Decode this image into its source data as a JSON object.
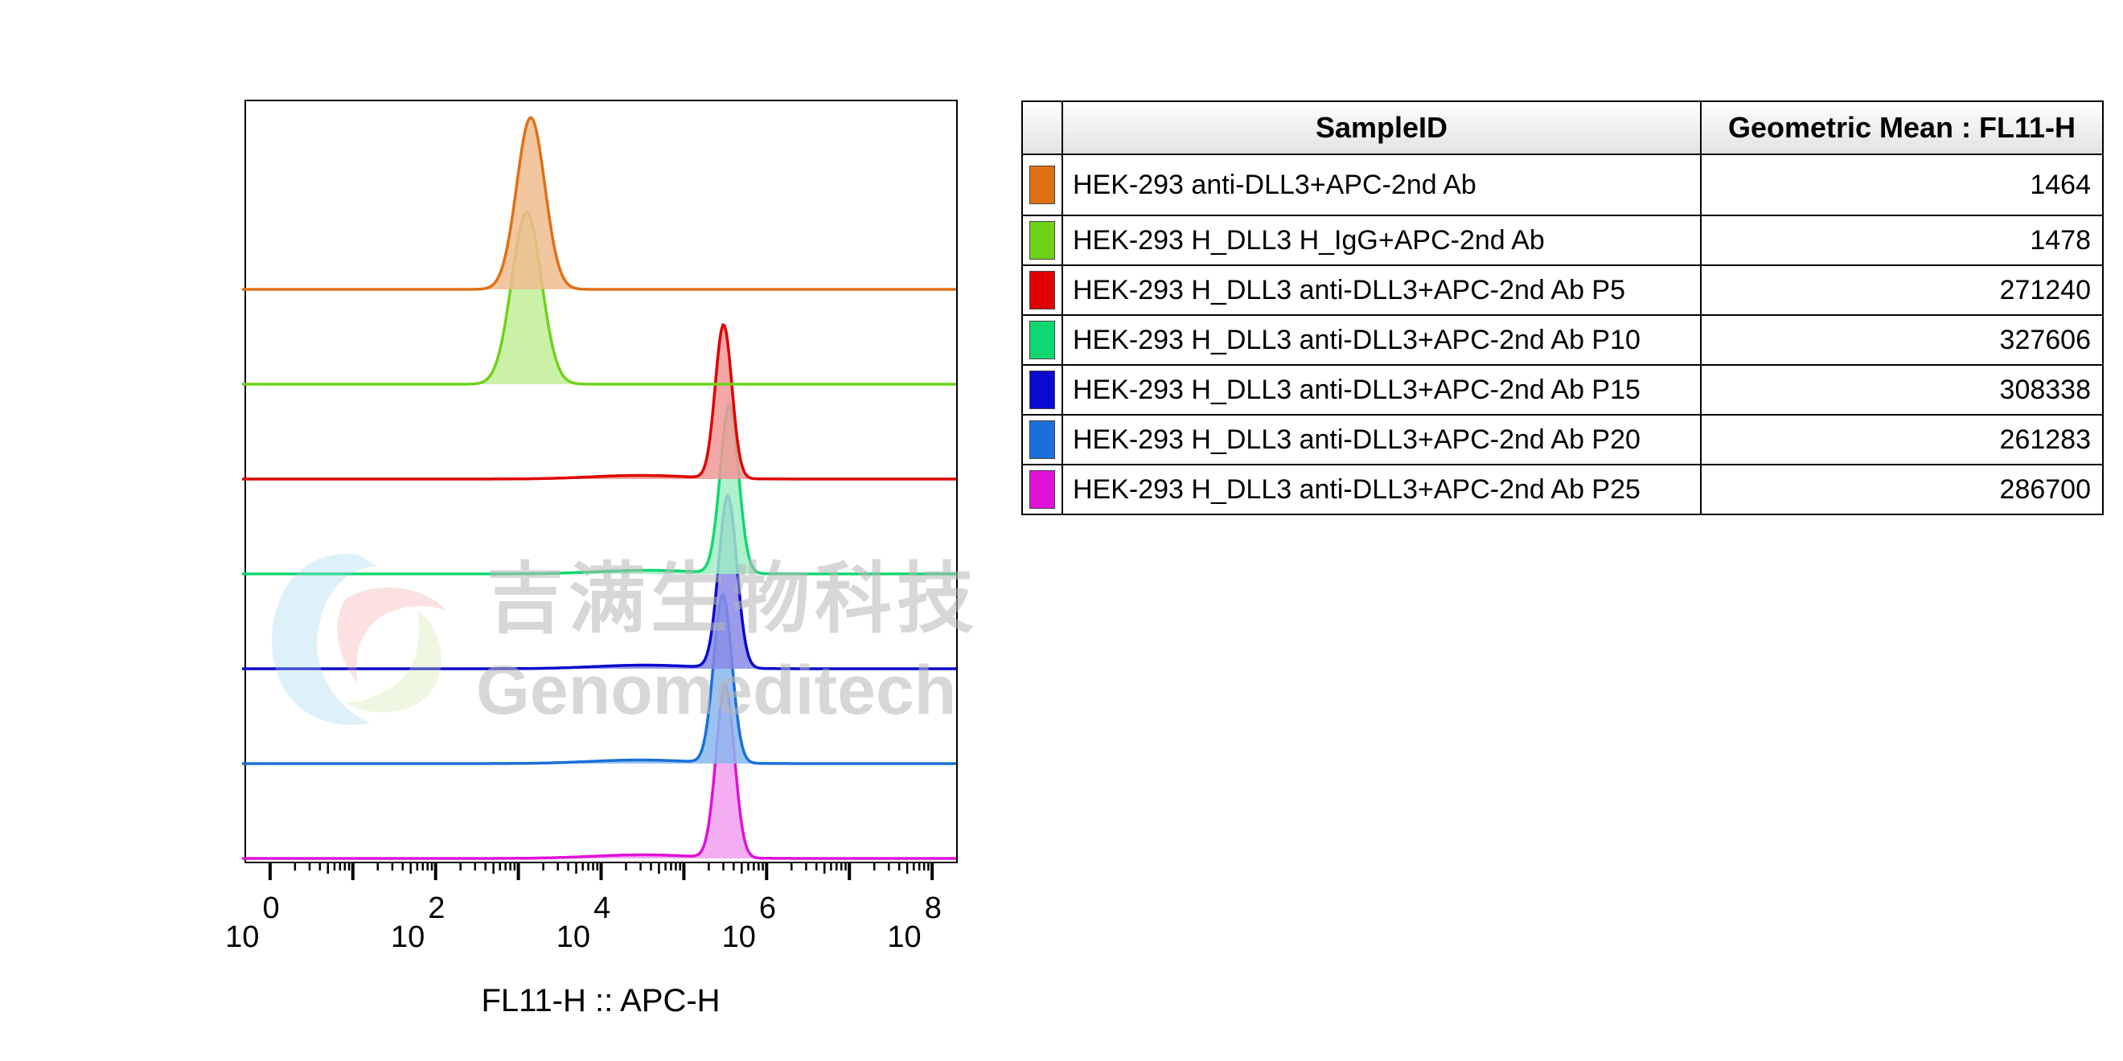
{
  "chart_data": {
    "type": "histogram",
    "xlabel": "FL11-H :: APC-H",
    "x_scale": "log",
    "xlim_exponent": [
      -0.3,
      8.3
    ],
    "xticks": [
      {
        "base": "10",
        "exp": "0",
        "value": 1
      },
      {
        "base": "10",
        "exp": "2",
        "value": 100
      },
      {
        "base": "10",
        "exp": "4",
        "value": 10000
      },
      {
        "base": "10",
        "exp": "6",
        "value": 1000000
      },
      {
        "base": "10",
        "exp": "8",
        "value": 100000000
      }
    ],
    "layout": "offset-stacked",
    "series": [
      {
        "sample": "HEK-293 anti-DLL3+APC-2nd Ab",
        "geo_mean": "1464",
        "color": "#e07015",
        "fill": "#f0bc8e",
        "peak_log10": 3.15,
        "width": 0.17,
        "height": 0.95
      },
      {
        "sample": "HEK-293 H_DLL3 H_IgG+APC-2nd Ab",
        "geo_mean": "1478",
        "color": "#6fd21a",
        "fill": "#c2ee9a",
        "peak_log10": 3.1,
        "width": 0.18,
        "height": 0.95
      },
      {
        "sample": "HEK-293 H_DLL3 anti-DLL3+APC-2nd Ab P5",
        "geo_mean": "271240",
        "color": "#e00000",
        "fill": "#f29898",
        "peak_log10": 5.48,
        "width": 0.1,
        "height": 0.85
      },
      {
        "sample": "HEK-293 H_DLL3 anti-DLL3+APC-2nd Ab P10",
        "geo_mean": "327606",
        "color": "#10d870",
        "fill": "#a0eec5",
        "peak_log10": 5.55,
        "width": 0.11,
        "height": 0.93
      },
      {
        "sample": "HEK-293 H_DLL3 anti-DLL3+APC-2nd Ab P15",
        "geo_mean": "308338",
        "color": "#0a0ad0",
        "fill": "#8a8ae6",
        "peak_log10": 5.53,
        "width": 0.11,
        "height": 0.95
      },
      {
        "sample": "HEK-293 H_DLL3 anti-DLL3+APC-2nd Ab P20",
        "geo_mean": "261283",
        "color": "#1a70d8",
        "fill": "#8ab8ee",
        "peak_log10": 5.47,
        "width": 0.11,
        "height": 0.93
      },
      {
        "sample": "HEK-293 H_DLL3 anti-DLL3+APC-2nd Ab P25",
        "geo_mean": "286700",
        "color": "#e010d8",
        "fill": "#f0a0ee",
        "peak_log10": 5.5,
        "width": 0.11,
        "height": 0.95
      }
    ],
    "grid": false
  },
  "table": {
    "header_sample": "SampleID",
    "header_value": "Geometric Mean : FL11-H"
  },
  "watermark": {
    "text_cn": "吉满生物科技",
    "text_en": "Genomeditech"
  }
}
